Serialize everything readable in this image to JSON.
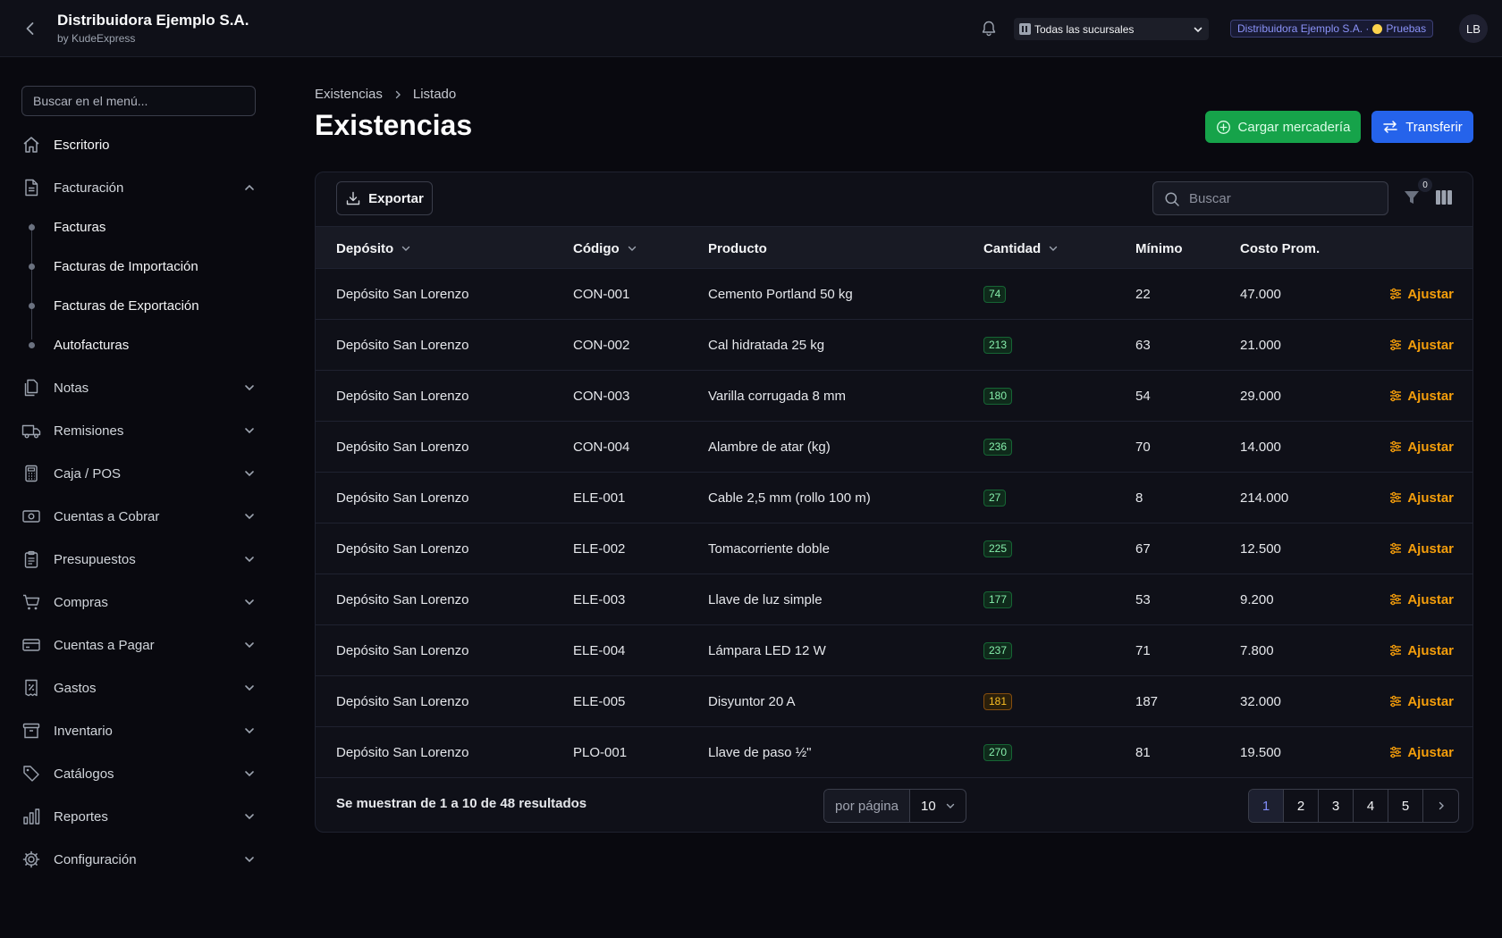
{
  "header": {
    "company": "Distribuidora Ejemplo S.A.",
    "byline": "by KudeExpress",
    "branch_select": "Todas las sucursales",
    "env_company": "Distribuidora Ejemplo S.A. ·",
    "env_mode": "Pruebas",
    "avatar_initials": "LB"
  },
  "sidebar": {
    "search_placeholder": "Buscar en el menú...",
    "items": [
      {
        "label": "Escritorio",
        "icon": "home-icon"
      },
      {
        "label": "Facturación",
        "icon": "document-icon",
        "expanded": true
      },
      {
        "label": "Notas",
        "icon": "notes-icon"
      },
      {
        "label": "Remisiones",
        "icon": "truck-icon"
      },
      {
        "label": "Caja / POS",
        "icon": "calculator-icon"
      },
      {
        "label": "Cuentas a Cobrar",
        "icon": "cash-icon"
      },
      {
        "label": "Presupuestos",
        "icon": "clipboard-icon"
      },
      {
        "label": "Compras",
        "icon": "cart-icon"
      },
      {
        "label": "Cuentas a Pagar",
        "icon": "credit-card-icon"
      },
      {
        "label": "Gastos",
        "icon": "receipt-percent-icon"
      },
      {
        "label": "Inventario",
        "icon": "archive-box-icon"
      },
      {
        "label": "Catálogos",
        "icon": "tag-icon"
      },
      {
        "label": "Reportes",
        "icon": "bar-chart-icon"
      },
      {
        "label": "Configuración",
        "icon": "gear-icon"
      }
    ],
    "facturacion_sub": [
      "Facturas",
      "Facturas de Importación",
      "Facturas de Exportación",
      "Autofacturas"
    ]
  },
  "breadcrumb": [
    "Existencias",
    "Listado"
  ],
  "page_title": "Existencias",
  "actions": {
    "load": "Cargar mercadería",
    "transfer": "Transferir"
  },
  "toolbar": {
    "export": "Exportar",
    "search_placeholder": "Buscar",
    "filter_count": "0"
  },
  "table": {
    "columns": [
      "Depósito",
      "Código",
      "Producto",
      "Cantidad",
      "Mínimo",
      "Costo Prom."
    ],
    "action_label": "Ajustar",
    "rows": [
      {
        "deposito": "Depósito San Lorenzo",
        "codigo": "CON-001",
        "producto": "Cemento Portland 50 kg",
        "cantidad": "74",
        "status": "ok",
        "minimo": "22",
        "costo": "47.000"
      },
      {
        "deposito": "Depósito San Lorenzo",
        "codigo": "CON-002",
        "producto": "Cal hidratada 25 kg",
        "cantidad": "213",
        "status": "ok",
        "minimo": "63",
        "costo": "21.000"
      },
      {
        "deposito": "Depósito San Lorenzo",
        "codigo": "CON-003",
        "producto": "Varilla corrugada 8 mm",
        "cantidad": "180",
        "status": "ok",
        "minimo": "54",
        "costo": "29.000"
      },
      {
        "deposito": "Depósito San Lorenzo",
        "codigo": "CON-004",
        "producto": "Alambre de atar (kg)",
        "cantidad": "236",
        "status": "ok",
        "minimo": "70",
        "costo": "14.000"
      },
      {
        "deposito": "Depósito San Lorenzo",
        "codigo": "ELE-001",
        "producto": "Cable 2,5 mm (rollo 100 m)",
        "cantidad": "27",
        "status": "ok",
        "minimo": "8",
        "costo": "214.000"
      },
      {
        "deposito": "Depósito San Lorenzo",
        "codigo": "ELE-002",
        "producto": "Tomacorriente doble",
        "cantidad": "225",
        "status": "ok",
        "minimo": "67",
        "costo": "12.500"
      },
      {
        "deposito": "Depósito San Lorenzo",
        "codigo": "ELE-003",
        "producto": "Llave de luz simple",
        "cantidad": "177",
        "status": "ok",
        "minimo": "53",
        "costo": "9.200"
      },
      {
        "deposito": "Depósito San Lorenzo",
        "codigo": "ELE-004",
        "producto": "Lámpara LED 12 W",
        "cantidad": "237",
        "status": "ok",
        "minimo": "71",
        "costo": "7.800"
      },
      {
        "deposito": "Depósito San Lorenzo",
        "codigo": "ELE-005",
        "producto": "Disyuntor 20 A",
        "cantidad": "181",
        "status": "warn",
        "minimo": "187",
        "costo": "32.000"
      },
      {
        "deposito": "Depósito San Lorenzo",
        "codigo": "PLO-001",
        "producto": "Llave de paso ½\"",
        "cantidad": "270",
        "status": "ok",
        "minimo": "81",
        "costo": "19.500"
      }
    ]
  },
  "pagination": {
    "summary": "Se muestran de 1 a 10 de 48 resultados",
    "per_page_label": "por página",
    "per_page_value": "10",
    "pages": [
      "1",
      "2",
      "3",
      "4",
      "5"
    ],
    "current": "1"
  },
  "colors": {
    "accent_green": "#16a34a",
    "accent_blue": "#2563eb",
    "adjust_amber": "#f59e0b"
  }
}
